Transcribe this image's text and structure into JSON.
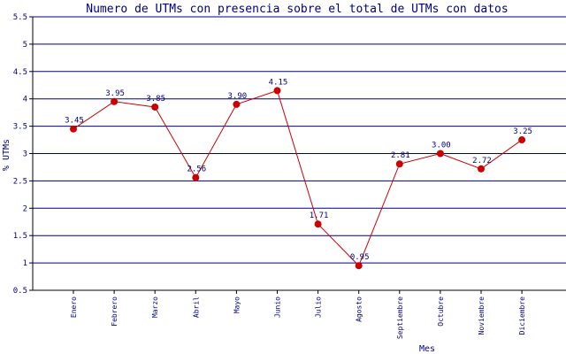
{
  "chart_data": {
    "type": "line",
    "title": "Numero de UTMs con presencia sobre el total de UTMs con datos",
    "xlabel": "Mes",
    "ylabel": "% UTMs",
    "ylim": [
      0.5,
      5.5
    ],
    "yticks": [
      0.5,
      1,
      1.5,
      2,
      2.5,
      3,
      3.5,
      4,
      4.5,
      5,
      5.5
    ],
    "ytick_labels": [
      "0.5",
      "1",
      "1.5",
      "2",
      "2.5",
      "3",
      "3.5",
      "4",
      "4.5",
      "5",
      "5.5"
    ],
    "grid": true,
    "categories": [
      "Enero",
      "Febrero",
      "Marzo",
      "Abril",
      "Mayo",
      "Junio",
      "Julio",
      "Agosto",
      "Septiembre",
      "Octubre",
      "Noviembre",
      "Diciembre"
    ],
    "series": [
      {
        "values": [
          3.45,
          3.95,
          3.85,
          2.56,
          3.9,
          4.15,
          1.71,
          0.95,
          2.81,
          3.0,
          2.72,
          3.25
        ],
        "labels": [
          "3.45",
          "3.95",
          "3.85",
          "2.56",
          "3.90",
          "4.15",
          "1.71",
          "0.95",
          "2.81",
          "3.00",
          "2.72",
          "3.25"
        ]
      }
    ],
    "colors": {
      "title": "#000080",
      "axis_text": "#000080",
      "grid": "#000080",
      "axis": "#000000",
      "line": "#cc0000",
      "marker": "#cc0000",
      "data_label": "#000080"
    }
  }
}
